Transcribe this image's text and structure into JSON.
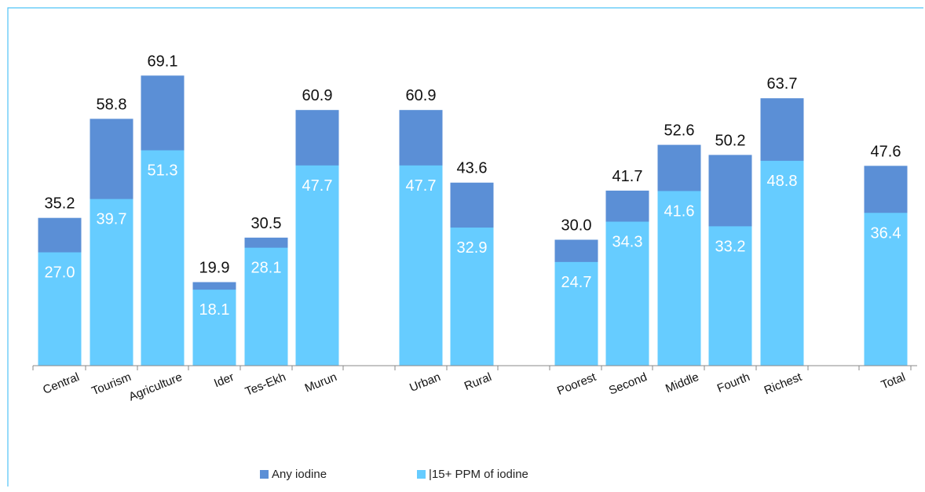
{
  "chart_data": {
    "type": "bar",
    "stacked": "overlay",
    "categories": [
      "Central",
      "Tourism",
      "Agriculture",
      "Ider",
      "Tes-Ekh",
      "Murun",
      "Urban",
      "Rural",
      "Poorest",
      "Second",
      "Middle",
      "Fourth",
      "Richest",
      "Total"
    ],
    "series": [
      {
        "name": "Any iodine",
        "color": "#5B8FD6",
        "values": [
          35.2,
          58.8,
          69.1,
          19.9,
          30.5,
          60.9,
          60.9,
          43.6,
          30.0,
          41.7,
          52.6,
          50.2,
          63.7,
          47.6
        ]
      },
      {
        "name": "15+ PPM of iodine",
        "color": "#66CCFF",
        "values": [
          27.0,
          39.7,
          51.3,
          18.1,
          28.1,
          47.7,
          47.7,
          32.9,
          24.7,
          34.3,
          41.6,
          33.2,
          48.8,
          36.4
        ]
      }
    ],
    "labels_any": [
      "35.2",
      "58.8",
      "69.1",
      "19.9",
      "30.5",
      "60.9",
      "60.9",
      "43.6",
      "30.0",
      "41.7",
      "52.6",
      "50.2",
      "63.7",
      "47.6"
    ],
    "labels_ppm": [
      "27.0",
      "39.7",
      "51.3",
      "18.1",
      "28.1",
      "47.7",
      "47.7",
      "32.9",
      "24.7",
      "34.3",
      "41.6",
      "33.2",
      "48.8",
      "36.4"
    ],
    "ylim": [
      0,
      80
    ],
    "title": "",
    "xlabel": "",
    "ylabel": "",
    "grid": false,
    "legend": "bottom",
    "legend_labels": [
      "Any iodine",
      "|15+ PPM of iodine"
    ]
  },
  "colors": {
    "frame": "#4FC3F7",
    "axis": "#888888"
  }
}
